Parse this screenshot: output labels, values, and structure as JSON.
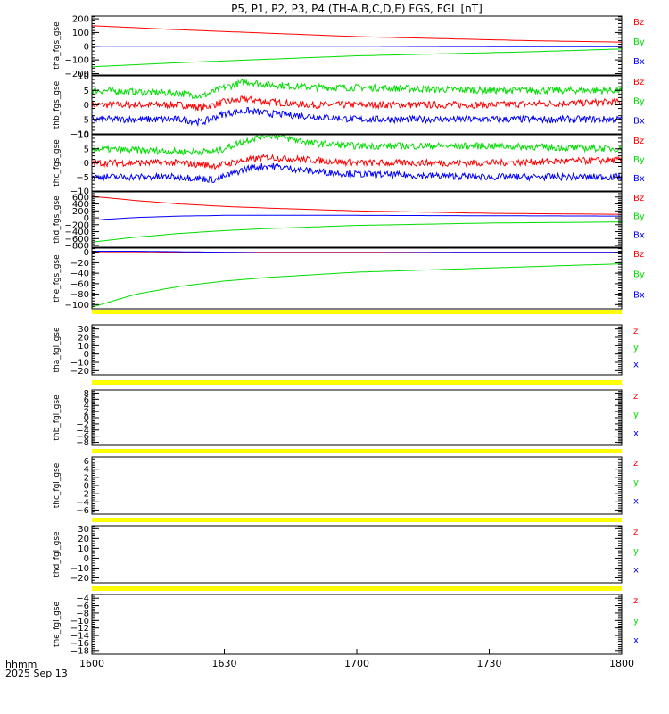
{
  "title": "P5, P1, P2, P3, P4 (TH-A,B,C,D,E) FGS, FGL [nT]",
  "footer": {
    "axis_label": "hhmm",
    "date": "2025 Sep 13"
  },
  "x_ticks": [
    "1600",
    "1630",
    "1700",
    "1730",
    "1800"
  ],
  "colors": {
    "z": "#ff0000",
    "y": "#00dd00",
    "x": "#0000ff",
    "flag": "#ffff00",
    "axis": "#000000"
  },
  "chart_data": [
    {
      "type": "line",
      "ylabel": "tha_fgs_gse",
      "ylim": [
        -210,
        220
      ],
      "yticks": [
        "200",
        "100",
        "0",
        "−100",
        "−200"
      ],
      "ytick_values": [
        200,
        100,
        0,
        -100,
        -200
      ],
      "legend": [
        "Bz",
        "By",
        "Bx"
      ],
      "noise": 0,
      "x": [
        1600,
        1620,
        1640,
        1700,
        1720,
        1740,
        1800
      ],
      "series": [
        {
          "name": "Bz",
          "values": [
            150,
            120,
            95,
            70,
            55,
            40,
            30
          ]
        },
        {
          "name": "By",
          "values": [
            -150,
            -120,
            -95,
            -70,
            -55,
            -40,
            -20
          ]
        },
        {
          "name": "Bx",
          "values": [
            0,
            0,
            0,
            0,
            -2,
            -3,
            -3
          ]
        }
      ]
    },
    {
      "type": "line",
      "ylabel": "thb_fgs_gse",
      "ylim": [
        -10,
        10
      ],
      "yticks": [
        "10",
        "5",
        "0",
        "−5",
        "−10"
      ],
      "ytick_values": [
        10,
        5,
        0,
        -5,
        -10
      ],
      "legend": [
        "Bz",
        "By",
        "Bx"
      ],
      "noise": 1.2,
      "x": [
        1600,
        1620,
        1625,
        1630,
        1635,
        1640,
        1650,
        1700,
        1730,
        1800
      ],
      "series": [
        {
          "name": "Bz",
          "values": [
            0,
            0,
            -1,
            1,
            2,
            1,
            0,
            0,
            0,
            1
          ]
        },
        {
          "name": "By",
          "values": [
            5,
            4,
            3,
            6,
            8,
            7,
            6,
            6,
            5,
            5
          ]
        },
        {
          "name": "Bx",
          "values": [
            -5,
            -5,
            -6,
            -3,
            -2,
            -3,
            -4,
            -5,
            -5,
            -5
          ]
        }
      ]
    },
    {
      "type": "line",
      "ylabel": "thc_fgs_gse",
      "ylim": [
        -10,
        10
      ],
      "yticks": [
        "10",
        "5",
        "0",
        "−5",
        "−10"
      ],
      "ytick_values": [
        10,
        5,
        0,
        -5,
        -10
      ],
      "legend": [
        "Bz",
        "By",
        "Bx"
      ],
      "noise": 1.2,
      "x": [
        1600,
        1620,
        1628,
        1635,
        1640,
        1650,
        1700,
        1730,
        1800
      ],
      "series": [
        {
          "name": "Bz",
          "values": [
            0,
            0,
            -1,
            1,
            2,
            1,
            0,
            0,
            1
          ]
        },
        {
          "name": "By",
          "values": [
            5,
            4,
            4,
            8,
            10,
            7,
            6,
            6,
            5
          ]
        },
        {
          "name": "Bx",
          "values": [
            -5,
            -5,
            -6,
            -2,
            -1,
            -3,
            -4,
            -5,
            -5
          ]
        }
      ]
    },
    {
      "type": "line",
      "ylabel": "thd_fgs_gse",
      "ylim": [
        -850,
        750
      ],
      "yticks": [
        "600",
        "400",
        "200",
        "0",
        "−200",
        "−400",
        "−600",
        "−800"
      ],
      "ytick_values": [
        600,
        400,
        200,
        0,
        -200,
        -400,
        -600,
        -800
      ],
      "legend": [
        "Bz",
        "By",
        "Bx"
      ],
      "noise": 0,
      "x": [
        1600,
        1610,
        1620,
        1630,
        1640,
        1700,
        1730,
        1800
      ],
      "series": [
        {
          "name": "Bz",
          "values": [
            620,
            500,
            400,
            330,
            280,
            200,
            130,
            100
          ]
        },
        {
          "name": "By",
          "values": [
            -700,
            -560,
            -450,
            -370,
            -310,
            -220,
            -150,
            -120
          ]
        },
        {
          "name": "Bx",
          "values": [
            -70,
            10,
            50,
            70,
            75,
            70,
            60,
            50
          ]
        }
      ]
    },
    {
      "type": "line",
      "ylabel": "the_fgs_gse",
      "ylim": [
        -108,
        8
      ],
      "yticks": [
        "0",
        "−20",
        "−40",
        "−60",
        "−80",
        "−100"
      ],
      "ytick_values": [
        0,
        -20,
        -40,
        -60,
        -80,
        -100
      ],
      "legend": [
        "Bz",
        "By",
        "Bx"
      ],
      "noise": 0,
      "x": [
        1600,
        1610,
        1620,
        1630,
        1640,
        1700,
        1730,
        1800
      ],
      "series": [
        {
          "name": "Bz",
          "values": [
            1,
            1,
            0,
            0,
            0,
            0,
            0,
            0
          ]
        },
        {
          "name": "By",
          "values": [
            -105,
            -80,
            -65,
            -55,
            -48,
            -38,
            -30,
            -22
          ]
        },
        {
          "name": "Bx",
          "values": [
            2,
            2,
            1,
            0,
            -1,
            -1,
            0,
            0
          ]
        }
      ]
    },
    {
      "type": "line",
      "ylabel": "tha_fgl_gse",
      "ylim": [
        -25,
        35
      ],
      "yticks": [
        "30",
        "20",
        "10",
        "0",
        "−10",
        "−20"
      ],
      "ytick_values": [
        30,
        20,
        10,
        0,
        -10,
        -20
      ],
      "legend": [
        "z",
        "y",
        "x"
      ],
      "series": []
    },
    {
      "type": "line",
      "ylabel": "thb_fgl_gse",
      "ylim": [
        -9,
        9
      ],
      "yticks": [
        "8",
        "6",
        "4",
        "2",
        "0",
        "−2",
        "−4",
        "−6",
        "−8"
      ],
      "ytick_values": [
        8,
        6,
        4,
        2,
        0,
        -2,
        -4,
        -6,
        -8
      ],
      "legend": [
        "z",
        "y",
        "x"
      ],
      "series": []
    },
    {
      "type": "line",
      "ylabel": "thc_fgl_gse",
      "ylim": [
        -7,
        7
      ],
      "yticks": [
        "6",
        "4",
        "2",
        "0",
        "−2",
        "−4",
        "−6"
      ],
      "ytick_values": [
        6,
        4,
        2,
        0,
        -2,
        -4,
        -6
      ],
      "legend": [
        "z",
        "y",
        "x"
      ],
      "series": []
    },
    {
      "type": "line",
      "ylabel": "thd_fgl_gse",
      "ylim": [
        -25,
        33
      ],
      "yticks": [
        "30",
        "20",
        "10",
        "0",
        "−10",
        "−20"
      ],
      "ytick_values": [
        30,
        20,
        10,
        0,
        -10,
        -20
      ],
      "legend": [
        "z",
        "y",
        "x"
      ],
      "series": []
    },
    {
      "type": "line",
      "ylabel": "the_fgl_gse",
      "ylim": [
        -19,
        -3
      ],
      "yticks": [
        "−4",
        "−6",
        "−8",
        "−10",
        "−12",
        "−14",
        "−16",
        "−18"
      ],
      "ytick_values": [
        -4,
        -6,
        -8,
        -10,
        -12,
        -14,
        -16,
        -18
      ],
      "legend": [
        "z",
        "y",
        "x"
      ],
      "series": []
    }
  ]
}
